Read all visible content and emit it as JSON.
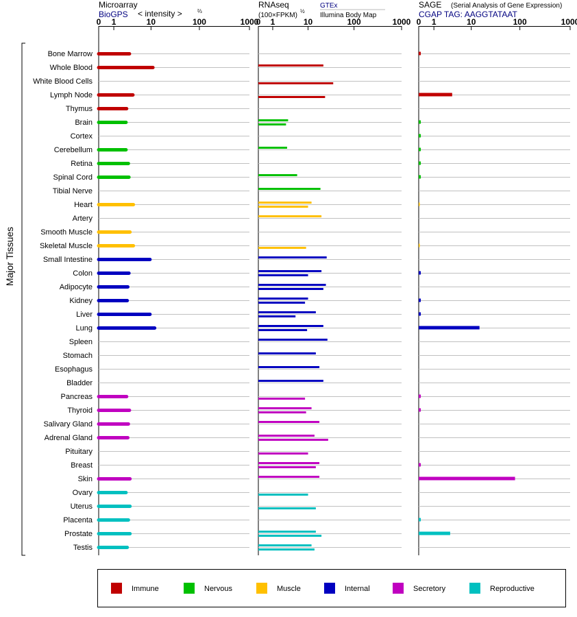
{
  "panels": [
    {
      "key": "microarray",
      "title": "Microarray",
      "subtitle": "BioGPS",
      "unit": "< intensity >",
      "unit_exp": "⅔"
    },
    {
      "key": "rnaseq",
      "title": "RNAseq",
      "unit": "(100×FPKM)",
      "unit_exp": "½",
      "source_top": "GTEx",
      "source_bottom": "Illumina Body Map"
    },
    {
      "key": "sage",
      "title": "SAGE",
      "title_note": "(Serial Analysis of Gene Expression)",
      "subtitle": "CGAP TAG: AAGGTATAAT"
    }
  ],
  "axis_ticks": [
    "0",
    "1",
    "10",
    "100",
    "1000"
  ],
  "group_label": "Major Tissues",
  "legend": [
    {
      "name": "Immune",
      "color": "#c00000"
    },
    {
      "name": "Nervous",
      "color": "#00c000"
    },
    {
      "name": "Muscle",
      "color": "#ffc000"
    },
    {
      "name": "Internal",
      "color": "#0000c0"
    },
    {
      "name": "Secretory",
      "color": "#c000c0"
    },
    {
      "name": "Reproductive",
      "color": "#00c0c0"
    }
  ],
  "chart_data": {
    "type": "bar",
    "orientation": "horizontal",
    "x_scale": "log",
    "xlim": [
      0,
      1000
    ],
    "categories": [
      "Bone Marrow",
      "Whole Blood",
      "White Blood Cells",
      "Lymph Node",
      "Thymus",
      "Brain",
      "Cortex",
      "Cerebellum",
      "Retina",
      "Spinal Cord",
      "Tibial Nerve",
      "Heart",
      "Artery",
      "Smooth Muscle",
      "Skeletal Muscle",
      "Small Intestine",
      "Colon",
      "Adipocyte",
      "Kidney",
      "Liver",
      "Lung",
      "Spleen",
      "Stomach",
      "Esophagus",
      "Bladder",
      "Pancreas",
      "Thyroid",
      "Salivary Gland",
      "Adrenal Gland",
      "Pituitary",
      "Breast",
      "Skin",
      "Ovary",
      "Uterus",
      "Placenta",
      "Prostate",
      "Testis"
    ],
    "category_group": [
      "Immune",
      "Immune",
      "Immune",
      "Immune",
      "Immune",
      "Nervous",
      "Nervous",
      "Nervous",
      "Nervous",
      "Nervous",
      "Nervous",
      "Muscle",
      "Muscle",
      "Muscle",
      "Muscle",
      "Internal",
      "Internal",
      "Internal",
      "Internal",
      "Internal",
      "Internal",
      "Internal",
      "Internal",
      "Internal",
      "Internal",
      "Secretory",
      "Secretory",
      "Secretory",
      "Secretory",
      "Secretory",
      "Secretory",
      "Secretory",
      "Reproductive",
      "Reproductive",
      "Reproductive",
      "Reproductive",
      "Reproductive"
    ],
    "microarray": [
      3.1,
      11,
      null,
      3.8,
      2.6,
      2.5,
      null,
      2.5,
      2.9,
      3.0,
      null,
      3.9,
      null,
      3.2,
      3.9,
      9.5,
      3.0,
      2.8,
      2.7,
      9.5,
      12,
      null,
      null,
      null,
      null,
      2.6,
      3.1,
      2.9,
      2.8,
      null,
      null,
      3.2,
      2.5,
      3.2,
      2.9,
      3.2,
      2.7
    ],
    "rnaseq_gtex": [
      null,
      22,
      null,
      null,
      null,
      3.2,
      null,
      3.0,
      null,
      5.5,
      19,
      12,
      20,
      null,
      null,
      26,
      20,
      25,
      10,
      15,
      22,
      27,
      15,
      18,
      22,
      null,
      12,
      18,
      14,
      null,
      18,
      18,
      null,
      null,
      null,
      15,
      12
    ],
    "rnaseq_ibm": [
      null,
      null,
      36,
      24,
      null,
      2.8,
      null,
      null,
      null,
      null,
      null,
      10,
      null,
      null,
      9,
      null,
      10,
      22,
      8.5,
      5,
      9.5,
      null,
      null,
      null,
      null,
      8.5,
      9,
      null,
      28,
      10,
      15,
      null,
      10,
      15,
      null,
      20,
      14
    ],
    "sage": [
      0.1,
      null,
      null,
      3.6,
      null,
      0.1,
      0.1,
      0.1,
      0.1,
      0.1,
      null,
      0.05,
      null,
      null,
      0.05,
      null,
      0.1,
      null,
      0.1,
      0.1,
      15,
      null,
      null,
      null,
      null,
      0.1,
      0.1,
      null,
      null,
      null,
      0.1,
      80,
      null,
      null,
      0.1,
      3.2,
      null
    ]
  }
}
